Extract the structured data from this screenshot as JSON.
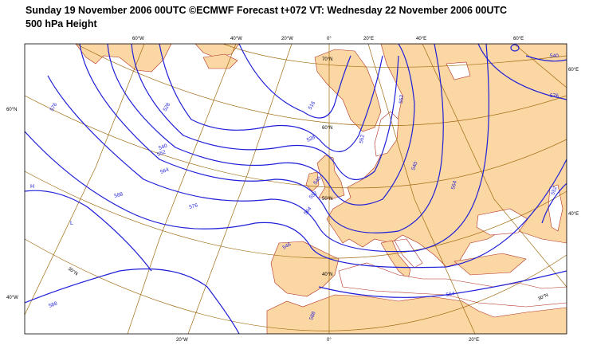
{
  "header": {
    "line1": "Sunday 19 November 2006 00UTC ©ECMWF Forecast t+072 VT: Wednesday 22 November 2006 00UTC",
    "line2": "500 hPa Height"
  },
  "map": {
    "projection": "polar stereographic",
    "land_color": "#fbd7a4",
    "coast_color": "#b03020",
    "sea_color": "#ffffff",
    "graticule_color": "#a06a10",
    "contour_color": "#1f1fd8",
    "variable": "500 hPa Height"
  },
  "ticks": {
    "top": [
      "60°W",
      "40°W",
      "20°W",
      "0°",
      "20°E",
      "40°E",
      "60°E"
    ],
    "bottom": [
      "20°W",
      "0°",
      "20°E"
    ],
    "left": [
      "60°N",
      "40°W"
    ],
    "right": [
      "60°E",
      "40°E"
    ],
    "inner": [
      "70°N",
      "60°N",
      "50°N",
      "40°N",
      "30°N",
      "30°N"
    ]
  },
  "contour_labels": [
    "528",
    "576",
    "540",
    "552",
    "564",
    "588",
    "588",
    "516",
    "528",
    "540",
    "552",
    "564",
    "576",
    "552",
    "540",
    "552",
    "564",
    "576",
    "540",
    "552",
    "546",
    "588",
    "564"
  ],
  "pressure_centers": [
    "H",
    "L"
  ]
}
